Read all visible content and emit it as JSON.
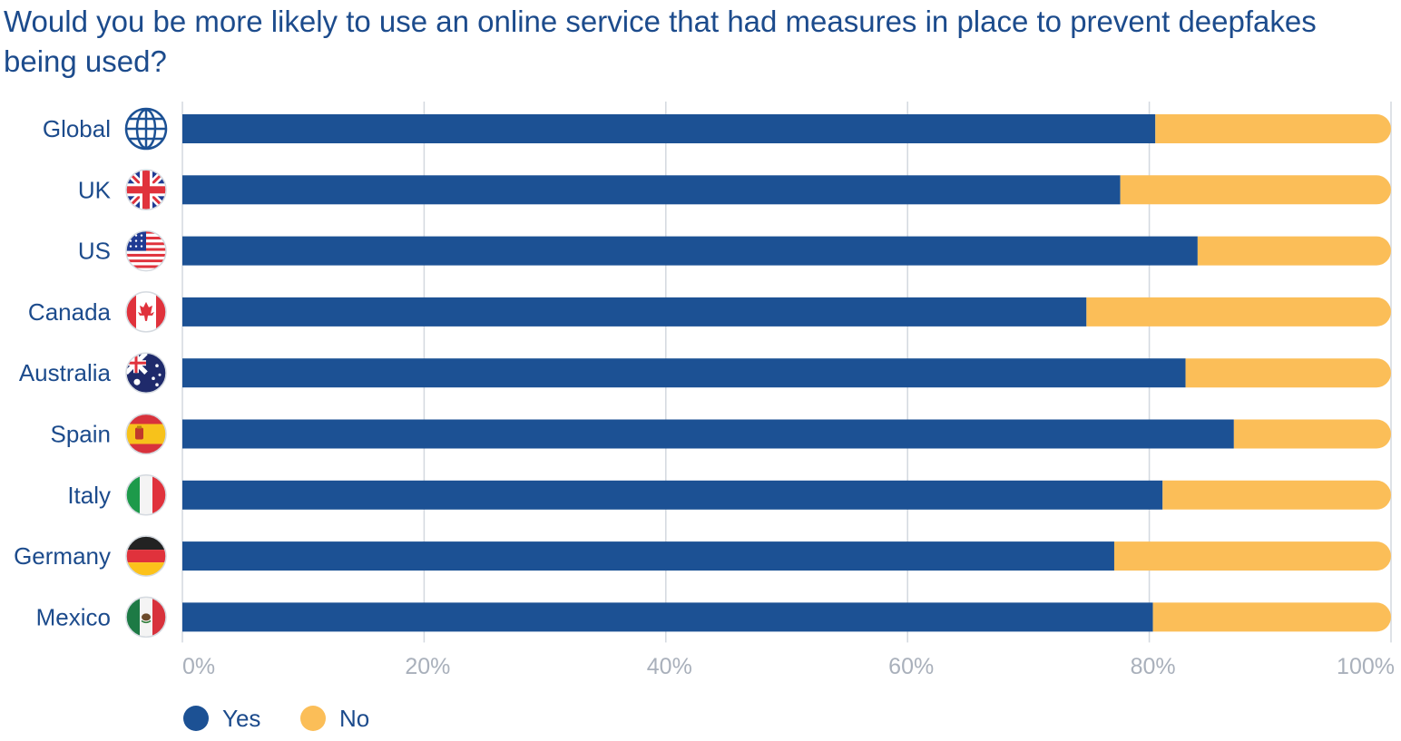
{
  "chart_data": {
    "type": "bar",
    "orientation": "horizontal",
    "stacked": true,
    "title": "Would you be more likely to use an online service that had measures in place to prevent deepfakes being used?",
    "categories": [
      "Global",
      "UK",
      "US",
      "Canada",
      "Australia",
      "Spain",
      "Italy",
      "Germany",
      "Mexico"
    ],
    "category_icons": [
      "globe-icon",
      "uk-flag-icon",
      "us-flag-icon",
      "canada-flag-icon",
      "australia-flag-icon",
      "spain-flag-icon",
      "italy-flag-icon",
      "germany-flag-icon",
      "mexico-flag-icon"
    ],
    "series": [
      {
        "name": "Yes",
        "color": "#1c5194",
        "values": [
          80.5,
          77.6,
          84,
          74.8,
          83,
          87,
          81.1,
          77.1,
          80.3
        ]
      },
      {
        "name": "No",
        "color": "#fbbe58",
        "values": [
          19.5,
          22.4,
          16,
          25.2,
          17,
          13,
          18.9,
          22.9,
          19.7
        ]
      }
    ],
    "xlim": [
      0,
      100
    ],
    "ticks": [
      0,
      20,
      40,
      60,
      80,
      100
    ],
    "tick_labels": [
      "0%",
      "20%",
      "40%",
      "60%",
      "80%",
      "100%"
    ],
    "grid": true,
    "legend_position": "bottom-left",
    "legend": [
      "Yes",
      "No"
    ]
  }
}
